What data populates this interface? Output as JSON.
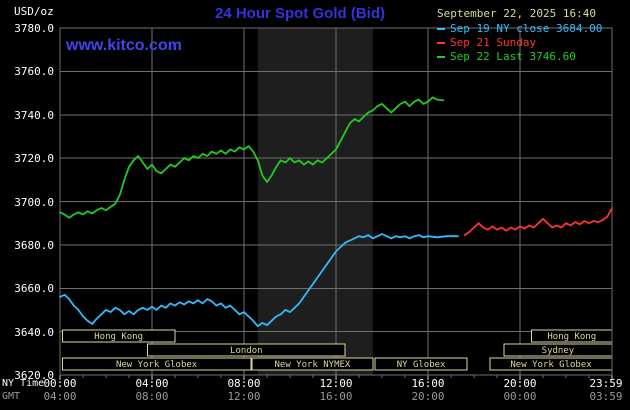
{
  "header": {
    "unit_label": "USD/oz",
    "title": "24 Hour Spot Gold (Bid)",
    "watermark": "www.kitco.com",
    "datetime": "September 22, 2025 16:40"
  },
  "legend": [
    {
      "label": "Sep 19 NY close 3684.00",
      "color": "#33bbff"
    },
    {
      "label": "Sep 21 Sunday",
      "color": "#ff3333"
    },
    {
      "label": "Sep 22 Last 3746.60",
      "color": "#22cc22"
    }
  ],
  "axes": {
    "ny_label": "NY Time",
    "gmt_label": "GMT",
    "ny_ticks": [
      "00:00",
      "04:00",
      "08:00",
      "12:00",
      "16:00",
      "20:00",
      "23:59"
    ],
    "gmt_ticks": [
      "04:00",
      "08:00",
      "12:00",
      "16:00",
      "20:00",
      "00:00",
      "03:59"
    ],
    "y_tick_labels": [
      "3780.0",
      "3760.0",
      "3740.0",
      "3720.0",
      "3700.0",
      "3680.0",
      "3660.0",
      "3640.0",
      "3620.0"
    ]
  },
  "sessions": [
    {
      "row": 0,
      "start": 0.1,
      "end": 5.0,
      "label": "Hong Kong"
    },
    {
      "row": 0,
      "start": 20.5,
      "end": 24,
      "label": "Hong Kong"
    },
    {
      "row": 1,
      "start": 3.8,
      "end": 12.4,
      "label": "London"
    },
    {
      "row": 1,
      "start": 19.3,
      "end": 24,
      "label": "Sydney"
    },
    {
      "row": 2,
      "start": 0.1,
      "end": 8.3,
      "label": "New York Globex"
    },
    {
      "row": 2,
      "start": 8.35,
      "end": 13.6,
      "label": "New York NYMEX"
    },
    {
      "row": 2,
      "start": 13.7,
      "end": 17.7,
      "label": "NY Globex"
    },
    {
      "row": 2,
      "start": 18.7,
      "end": 24,
      "label": "New York Globex"
    }
  ],
  "colors": {
    "background": "#000000",
    "grid": "#6f6f6f",
    "band": "#1e1e1e",
    "session": "#d9d99b",
    "title": "#3333dd",
    "watermark": "#4444ee",
    "datetime": "#d9d99b",
    "axis_text": "#ffffff",
    "gmt_text": "#999999"
  },
  "chart_data": {
    "type": "line",
    "title": "24 Hour Spot Gold (Bid)",
    "xlabel": "NY Time / GMT",
    "ylabel": "USD/oz",
    "ylim": [
      3620,
      3780
    ],
    "xlim_hours": [
      0,
      24
    ],
    "y_grid_step": 20,
    "x_grid_step_hours": 4,
    "grid": true,
    "legend_position": "top-right",
    "highlight_band_hours": [
      8.6,
      13.6
    ],
    "series": [
      {
        "name": "Sep 19 NY close",
        "color": "#33bbff",
        "close": 3684.0,
        "points": [
          [
            0,
            3656
          ],
          [
            0.2,
            3657
          ],
          [
            0.4,
            3655
          ],
          [
            0.6,
            3652
          ],
          [
            0.8,
            3650
          ],
          [
            1,
            3647
          ],
          [
            1.2,
            3645
          ],
          [
            1.4,
            3643.5
          ],
          [
            1.6,
            3646
          ],
          [
            1.8,
            3648
          ],
          [
            2,
            3650
          ],
          [
            2.2,
            3649
          ],
          [
            2.4,
            3651
          ],
          [
            2.6,
            3650
          ],
          [
            2.8,
            3648
          ],
          [
            3,
            3649.5
          ],
          [
            3.2,
            3648
          ],
          [
            3.4,
            3650
          ],
          [
            3.6,
            3651
          ],
          [
            3.8,
            3650
          ],
          [
            4,
            3651.5
          ],
          [
            4.2,
            3650
          ],
          [
            4.4,
            3652
          ],
          [
            4.6,
            3651
          ],
          [
            4.8,
            3653
          ],
          [
            5,
            3652
          ],
          [
            5.2,
            3653.5
          ],
          [
            5.4,
            3652.5
          ],
          [
            5.6,
            3654
          ],
          [
            5.8,
            3653
          ],
          [
            6,
            3654.5
          ],
          [
            6.2,
            3653
          ],
          [
            6.4,
            3655
          ],
          [
            6.6,
            3654
          ],
          [
            6.8,
            3652
          ],
          [
            7,
            3653
          ],
          [
            7.2,
            3651
          ],
          [
            7.4,
            3652
          ],
          [
            7.6,
            3650
          ],
          [
            7.8,
            3648
          ],
          [
            8,
            3649
          ],
          [
            8.2,
            3647
          ],
          [
            8.4,
            3645
          ],
          [
            8.6,
            3642.5
          ],
          [
            8.8,
            3644
          ],
          [
            9,
            3643
          ],
          [
            9.2,
            3645
          ],
          [
            9.4,
            3647
          ],
          [
            9.6,
            3648
          ],
          [
            9.8,
            3650
          ],
          [
            10,
            3649
          ],
          [
            10.2,
            3651
          ],
          [
            10.4,
            3653
          ],
          [
            10.6,
            3656
          ],
          [
            10.8,
            3659
          ],
          [
            11,
            3662
          ],
          [
            11.2,
            3665
          ],
          [
            11.4,
            3668
          ],
          [
            11.6,
            3671
          ],
          [
            11.8,
            3674
          ],
          [
            12,
            3677
          ],
          [
            12.2,
            3679
          ],
          [
            12.4,
            3681
          ],
          [
            12.6,
            3682
          ],
          [
            12.8,
            3683
          ],
          [
            13,
            3684
          ],
          [
            13.2,
            3683.5
          ],
          [
            13.4,
            3684.5
          ],
          [
            13.6,
            3683
          ],
          [
            13.8,
            3684
          ],
          [
            14,
            3685
          ],
          [
            14.2,
            3684
          ],
          [
            14.4,
            3683
          ],
          [
            14.6,
            3684
          ],
          [
            14.8,
            3683.5
          ],
          [
            15,
            3684
          ],
          [
            15.2,
            3683
          ],
          [
            15.4,
            3684
          ],
          [
            15.6,
            3684.5
          ],
          [
            15.8,
            3683.5
          ],
          [
            16,
            3684
          ],
          [
            16.4,
            3683.5
          ],
          [
            16.8,
            3684
          ],
          [
            17.3,
            3684
          ]
        ]
      },
      {
        "name": "Sep 21 Sunday",
        "color": "#ff3333",
        "points": [
          [
            17.6,
            3684.5
          ],
          [
            17.8,
            3686
          ],
          [
            18,
            3688
          ],
          [
            18.2,
            3690
          ],
          [
            18.4,
            3688
          ],
          [
            18.6,
            3687
          ],
          [
            18.8,
            3688.5
          ],
          [
            19,
            3687
          ],
          [
            19.2,
            3688
          ],
          [
            19.4,
            3686.5
          ],
          [
            19.6,
            3688
          ],
          [
            19.8,
            3687
          ],
          [
            20,
            3688.5
          ],
          [
            20.2,
            3687.5
          ],
          [
            20.4,
            3689
          ],
          [
            20.6,
            3688
          ],
          [
            20.8,
            3690
          ],
          [
            21,
            3692
          ],
          [
            21.2,
            3690
          ],
          [
            21.4,
            3688
          ],
          [
            21.6,
            3689
          ],
          [
            21.8,
            3688
          ],
          [
            22,
            3690
          ],
          [
            22.2,
            3689
          ],
          [
            22.4,
            3690.5
          ],
          [
            22.6,
            3689.5
          ],
          [
            22.8,
            3691
          ],
          [
            23,
            3690
          ],
          [
            23.2,
            3691
          ],
          [
            23.4,
            3690.5
          ],
          [
            23.6,
            3691.5
          ],
          [
            23.8,
            3693
          ],
          [
            24,
            3697
          ]
        ]
      },
      {
        "name": "Sep 22 Last",
        "color": "#22cc22",
        "last": 3746.6,
        "points": [
          [
            0,
            3695
          ],
          [
            0.2,
            3694
          ],
          [
            0.4,
            3692.5
          ],
          [
            0.6,
            3694
          ],
          [
            0.8,
            3695
          ],
          [
            1,
            3694
          ],
          [
            1.2,
            3695.5
          ],
          [
            1.4,
            3694.5
          ],
          [
            1.6,
            3696
          ],
          [
            1.8,
            3697
          ],
          [
            2,
            3696
          ],
          [
            2.2,
            3697.5
          ],
          [
            2.4,
            3699
          ],
          [
            2.6,
            3703
          ],
          [
            2.8,
            3710
          ],
          [
            3,
            3716
          ],
          [
            3.2,
            3719
          ],
          [
            3.4,
            3721
          ],
          [
            3.6,
            3718
          ],
          [
            3.8,
            3715
          ],
          [
            4,
            3717
          ],
          [
            4.2,
            3714
          ],
          [
            4.4,
            3713
          ],
          [
            4.6,
            3715
          ],
          [
            4.8,
            3717
          ],
          [
            5,
            3716
          ],
          [
            5.2,
            3718
          ],
          [
            5.4,
            3720
          ],
          [
            5.6,
            3719
          ],
          [
            5.8,
            3721
          ],
          [
            6,
            3720
          ],
          [
            6.2,
            3722
          ],
          [
            6.4,
            3721
          ],
          [
            6.6,
            3723
          ],
          [
            6.8,
            3722
          ],
          [
            7,
            3723.5
          ],
          [
            7.2,
            3722
          ],
          [
            7.4,
            3724
          ],
          [
            7.6,
            3723
          ],
          [
            7.8,
            3725
          ],
          [
            8,
            3724
          ],
          [
            8.2,
            3725.5
          ],
          [
            8.4,
            3723
          ],
          [
            8.6,
            3719
          ],
          [
            8.8,
            3712
          ],
          [
            9,
            3709
          ],
          [
            9.2,
            3712
          ],
          [
            9.4,
            3716
          ],
          [
            9.6,
            3719
          ],
          [
            9.8,
            3718
          ],
          [
            10,
            3720
          ],
          [
            10.2,
            3718
          ],
          [
            10.4,
            3719
          ],
          [
            10.6,
            3717
          ],
          [
            10.8,
            3718.5
          ],
          [
            11,
            3717
          ],
          [
            11.2,
            3719
          ],
          [
            11.4,
            3718
          ],
          [
            11.6,
            3720
          ],
          [
            11.8,
            3722
          ],
          [
            12,
            3724
          ],
          [
            12.2,
            3728
          ],
          [
            12.4,
            3732
          ],
          [
            12.6,
            3736
          ],
          [
            12.8,
            3738
          ],
          [
            13,
            3737
          ],
          [
            13.2,
            3739
          ],
          [
            13.4,
            3741
          ],
          [
            13.6,
            3742
          ],
          [
            13.8,
            3744
          ],
          [
            14,
            3745
          ],
          [
            14.2,
            3743
          ],
          [
            14.4,
            3741
          ],
          [
            14.6,
            3743
          ],
          [
            14.8,
            3745
          ],
          [
            15,
            3746
          ],
          [
            15.2,
            3744
          ],
          [
            15.4,
            3746
          ],
          [
            15.6,
            3747
          ],
          [
            15.8,
            3745
          ],
          [
            16,
            3746
          ],
          [
            16.2,
            3748
          ],
          [
            16.4,
            3747
          ],
          [
            16.67,
            3746.6
          ]
        ]
      }
    ]
  }
}
